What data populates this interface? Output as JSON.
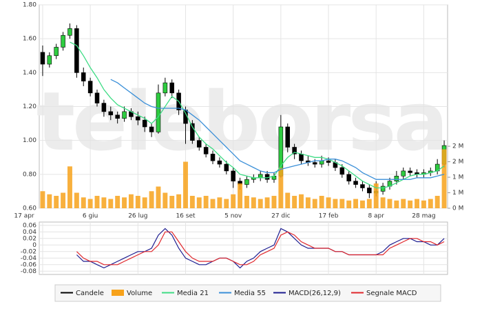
{
  "chart_data": [
    {
      "type": "candlestick",
      "watermark": "teleborsa",
      "grid": true,
      "categories": [
        "17 apr",
        null,
        null,
        null,
        null,
        null,
        null,
        "6 giu",
        null,
        null,
        null,
        null,
        null,
        null,
        "26 lug",
        null,
        null,
        null,
        null,
        null,
        null,
        "16 set",
        null,
        null,
        null,
        null,
        null,
        null,
        "5 nov",
        null,
        null,
        null,
        null,
        null,
        null,
        "27 dic",
        null,
        null,
        null,
        null,
        null,
        null,
        "17 feb",
        null,
        null,
        null,
        null,
        null,
        null,
        "8 apr",
        null,
        null,
        null,
        null,
        null,
        null,
        "28 mag",
        null,
        null,
        null
      ],
      "ylim": [
        0.6,
        1.8
      ],
      "yticks": [
        {
          "value": 1.8,
          "label": "1.80"
        },
        {
          "value": 1.6,
          "label": "1.60"
        },
        {
          "value": 1.4,
          "label": "1.40"
        },
        {
          "value": 1.2,
          "label": "1.20"
        },
        {
          "value": 1.0,
          "label": "1.00"
        },
        {
          "value": 0.8,
          "label": "0.80"
        },
        {
          "value": 0.6,
          "label": "0.60"
        }
      ],
      "y2lim": [
        0,
        6.56
      ],
      "y2ticks": [
        {
          "value": 2,
          "label": "2 M"
        },
        {
          "value": 1.5,
          "label": "2 M"
        },
        {
          "value": 1,
          "label": "1 M"
        },
        {
          "value": 0.5,
          "label": "1 M"
        },
        {
          "value": 0,
          "label": "0 M"
        }
      ],
      "series": [
        {
          "name": "Candele",
          "color": "#000000",
          "up_color": "#2ecc40",
          "down_color": "#000000",
          "open": [
            1.52,
            1.45,
            1.5,
            1.55,
            1.62,
            1.66,
            1.4,
            1.35,
            1.28,
            1.22,
            1.17,
            1.15,
            1.13,
            1.17,
            1.14,
            1.12,
            1.08,
            1.05,
            1.28,
            1.34,
            1.28,
            1.18,
            1.1,
            1.0,
            0.96,
            0.92,
            0.88,
            0.86,
            0.82,
            0.76,
            0.74,
            0.77,
            0.78,
            0.8,
            0.77,
            0.79,
            1.08,
            0.96,
            0.92,
            0.88,
            0.87,
            0.86,
            0.88,
            0.87,
            0.84,
            0.8,
            0.76,
            0.74,
            0.72,
            0.69,
            0.7,
            0.73,
            0.76,
            0.79,
            0.82,
            0.81,
            0.8,
            0.81,
            0.82,
            0.86
          ],
          "high": [
            1.56,
            1.52,
            1.57,
            1.64,
            1.69,
            1.68,
            1.43,
            1.37,
            1.3,
            1.24,
            1.2,
            1.17,
            1.2,
            1.19,
            1.17,
            1.14,
            1.1,
            1.33,
            1.37,
            1.36,
            1.3,
            1.2,
            1.12,
            1.02,
            0.98,
            0.94,
            0.9,
            0.88,
            0.84,
            0.78,
            0.79,
            0.8,
            0.82,
            0.82,
            0.81,
            1.15,
            1.1,
            0.98,
            0.94,
            0.91,
            0.89,
            0.91,
            0.9,
            0.89,
            0.86,
            0.82,
            0.78,
            0.76,
            0.74,
            0.76,
            0.75,
            0.78,
            0.82,
            0.84,
            0.84,
            0.83,
            0.83,
            0.84,
            0.89,
            1.0
          ],
          "low": [
            1.38,
            1.43,
            1.48,
            1.53,
            1.6,
            1.37,
            1.32,
            1.26,
            1.2,
            1.14,
            1.12,
            1.1,
            1.11,
            1.12,
            1.09,
            1.05,
            1.02,
            1.04,
            1.26,
            1.25,
            1.15,
            0.98,
            0.98,
            0.94,
            0.9,
            0.86,
            0.84,
            0.8,
            0.72,
            0.71,
            0.72,
            0.75,
            0.76,
            0.75,
            0.75,
            0.78,
            0.93,
            0.89,
            0.86,
            0.85,
            0.84,
            0.84,
            0.85,
            0.82,
            0.78,
            0.74,
            0.72,
            0.7,
            0.66,
            0.67,
            0.68,
            0.71,
            0.74,
            0.77,
            0.79,
            0.78,
            0.78,
            0.79,
            0.8,
            0.84
          ],
          "close": [
            1.45,
            1.5,
            1.55,
            1.62,
            1.66,
            1.4,
            1.35,
            1.28,
            1.22,
            1.17,
            1.15,
            1.13,
            1.17,
            1.14,
            1.12,
            1.08,
            1.05,
            1.28,
            1.34,
            1.28,
            1.18,
            1.1,
            1.0,
            0.96,
            0.92,
            0.88,
            0.86,
            0.82,
            0.76,
            0.74,
            0.77,
            0.78,
            0.8,
            0.77,
            0.79,
            1.08,
            0.96,
            0.92,
            0.88,
            0.87,
            0.86,
            0.88,
            0.87,
            0.84,
            0.8,
            0.76,
            0.74,
            0.72,
            0.69,
            0.7,
            0.73,
            0.76,
            0.79,
            0.82,
            0.81,
            0.8,
            0.81,
            0.82,
            0.86,
            0.97
          ]
        },
        {
          "name": "Volume",
          "type": "bar",
          "axis": "y2",
          "color": "#f7a21b",
          "values": [
            0.55,
            0.45,
            0.4,
            0.5,
            1.35,
            0.5,
            0.35,
            0.3,
            0.4,
            0.35,
            0.3,
            0.4,
            0.35,
            0.45,
            0.4,
            0.35,
            0.55,
            0.7,
            0.5,
            0.4,
            0.45,
            1.5,
            0.4,
            0.35,
            0.4,
            0.3,
            0.35,
            0.3,
            0.45,
            0.8,
            0.4,
            0.35,
            0.3,
            0.35,
            0.4,
            1.3,
            0.5,
            0.4,
            0.45,
            0.35,
            0.3,
            0.4,
            0.35,
            0.3,
            0.3,
            0.25,
            0.3,
            0.25,
            0.3,
            0.8,
            0.35,
            0.3,
            0.25,
            0.3,
            0.25,
            0.3,
            0.25,
            0.3,
            0.4,
            1.9
          ]
        },
        {
          "name": "Media 21",
          "type": "line",
          "color": "#3ddc84",
          "values": [
            null,
            null,
            null,
            null,
            1.58,
            1.56,
            1.5,
            1.43,
            1.37,
            1.3,
            1.25,
            1.21,
            1.19,
            1.17,
            1.15,
            1.13,
            1.1,
            1.14,
            1.2,
            1.26,
            1.23,
            1.16,
            1.08,
            1.02,
            0.98,
            0.95,
            0.91,
            0.87,
            0.84,
            0.8,
            0.79,
            0.78,
            0.78,
            0.78,
            0.79,
            0.85,
            0.9,
            0.93,
            0.92,
            0.91,
            0.9,
            0.9,
            0.89,
            0.87,
            0.85,
            0.82,
            0.79,
            0.76,
            0.74,
            0.72,
            0.72,
            0.73,
            0.75,
            0.77,
            0.79,
            0.8,
            0.8,
            0.81,
            0.82,
            0.85
          ]
        },
        {
          "name": "Media 55",
          "type": "line",
          "color": "#3a8fd8",
          "values": [
            null,
            null,
            null,
            null,
            null,
            null,
            null,
            null,
            null,
            null,
            1.36,
            1.34,
            1.31,
            1.28,
            1.25,
            1.22,
            1.2,
            1.19,
            1.19,
            1.19,
            1.19,
            1.18,
            1.15,
            1.12,
            1.08,
            1.04,
            1.0,
            0.96,
            0.92,
            0.88,
            0.86,
            0.84,
            0.82,
            0.81,
            0.81,
            0.83,
            0.84,
            0.85,
            0.86,
            0.87,
            0.88,
            0.88,
            0.89,
            0.89,
            0.88,
            0.86,
            0.84,
            0.81,
            0.79,
            0.77,
            0.77,
            0.77,
            0.77,
            0.77,
            0.77,
            0.78,
            0.78,
            0.78,
            0.79,
            0.8
          ]
        }
      ]
    },
    {
      "type": "line",
      "grid": true,
      "ylim": [
        -0.09,
        0.07
      ],
      "yticks": [
        0.06,
        0.04,
        0.02,
        0,
        -0.02,
        -0.04,
        -0.06,
        -0.08
      ],
      "series": [
        {
          "name": "MACD(26,12,9)",
          "color": "#1c1c8f",
          "values": [
            null,
            null,
            null,
            null,
            null,
            -0.03,
            -0.05,
            -0.05,
            -0.06,
            -0.07,
            -0.06,
            -0.05,
            -0.04,
            -0.03,
            -0.02,
            -0.02,
            -0.01,
            0.03,
            0.05,
            0.03,
            -0.01,
            -0.04,
            -0.05,
            -0.06,
            -0.06,
            -0.05,
            -0.04,
            -0.04,
            -0.05,
            -0.07,
            -0.05,
            -0.04,
            -0.02,
            -0.01,
            0.0,
            0.05,
            0.04,
            0.02,
            0.0,
            -0.01,
            -0.01,
            -0.01,
            -0.01,
            -0.02,
            -0.02,
            -0.03,
            -0.03,
            -0.03,
            -0.03,
            -0.03,
            -0.02,
            0.0,
            0.01,
            0.02,
            0.02,
            0.01,
            0.01,
            0.0,
            0.0,
            0.02
          ]
        },
        {
          "name": "Segnale MACD",
          "color": "#e0262b",
          "values": [
            null,
            null,
            null,
            null,
            null,
            -0.02,
            -0.04,
            -0.05,
            -0.05,
            -0.06,
            -0.06,
            -0.06,
            -0.05,
            -0.04,
            -0.03,
            -0.02,
            -0.02,
            0.0,
            0.04,
            0.04,
            0.01,
            -0.02,
            -0.04,
            -0.05,
            -0.05,
            -0.05,
            -0.04,
            -0.04,
            -0.05,
            -0.06,
            -0.06,
            -0.05,
            -0.03,
            -0.02,
            -0.01,
            0.03,
            0.04,
            0.03,
            0.01,
            0.0,
            -0.01,
            -0.01,
            -0.01,
            -0.02,
            -0.02,
            -0.03,
            -0.03,
            -0.03,
            -0.03,
            -0.03,
            -0.03,
            -0.01,
            0.0,
            0.01,
            0.02,
            0.02,
            0.01,
            0.01,
            0.0,
            0.01
          ]
        }
      ]
    }
  ]
}
